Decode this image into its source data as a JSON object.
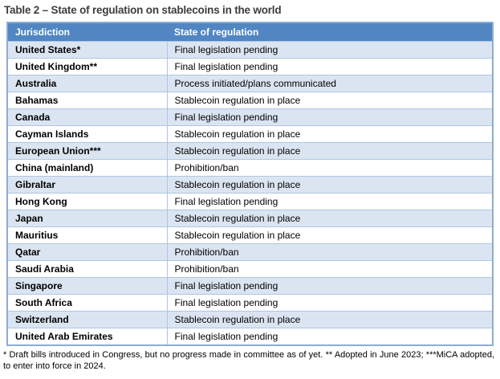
{
  "title": "Table 2 – State of regulation on stablecoins in the world",
  "table": {
    "headers": [
      "Jurisdiction",
      "State of regulation"
    ],
    "rows": [
      {
        "jurisdiction": "United States*",
        "state": "Final legislation pending"
      },
      {
        "jurisdiction": "United Kingdom**",
        "state": "Final legislation pending"
      },
      {
        "jurisdiction": "Australia",
        "state": "Process initiated/plans communicated"
      },
      {
        "jurisdiction": "Bahamas",
        "state": "Stablecoin regulation in place"
      },
      {
        "jurisdiction": "Canada",
        "state": "Final legislation pending"
      },
      {
        "jurisdiction": "Cayman Islands",
        "state": "Stablecoin regulation in place"
      },
      {
        "jurisdiction": "European Union***",
        "state": "Stablecoin regulation in place"
      },
      {
        "jurisdiction": "China (mainland)",
        "state": "Prohibition/ban"
      },
      {
        "jurisdiction": "Gibraltar",
        "state": "Stablecoin regulation in place"
      },
      {
        "jurisdiction": "Hong Kong",
        "state": "Final legislation pending"
      },
      {
        "jurisdiction": "Japan",
        "state": "Stablecoin regulation in place"
      },
      {
        "jurisdiction": "Mauritius",
        "state": "Stablecoin regulation in place"
      },
      {
        "jurisdiction": "Qatar",
        "state": "Prohibition/ban"
      },
      {
        "jurisdiction": "Saudi Arabia",
        "state": "Prohibition/ban"
      },
      {
        "jurisdiction": "Singapore",
        "state": "Final legislation pending"
      },
      {
        "jurisdiction": "South Africa",
        "state": "Final legislation pending"
      },
      {
        "jurisdiction": "Switzerland",
        "state": "Stablecoin regulation in place"
      },
      {
        "jurisdiction": "United Arab Emirates",
        "state": "Final legislation pending"
      }
    ]
  },
  "footnote": "* Draft bills introduced in Congress, but no progress made in committee as of yet. ** Adopted in June 2023; ***MiCA adopted, to enter into force in 2024.",
  "colors": {
    "header_bg": "#5186c3",
    "row_alt_bg": "#dbe5f1",
    "outer_border": "#8badd5",
    "inner_border": "#aec6e2",
    "header_text": "#ffffff",
    "title_text": "#3d3d3d",
    "body_text": "#000000"
  }
}
